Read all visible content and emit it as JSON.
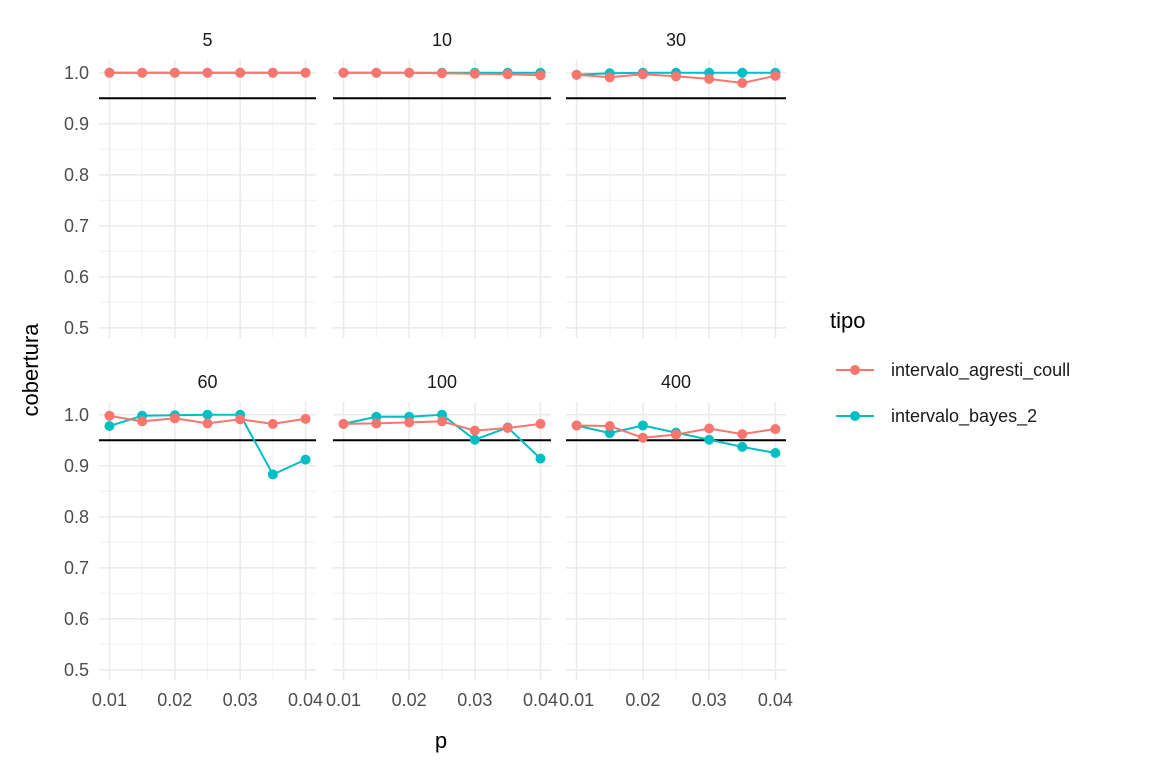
{
  "chart_data": {
    "type": "line",
    "xlabel": "p",
    "ylabel": "cobertura",
    "x": [
      0.01,
      0.015,
      0.02,
      0.025,
      0.03,
      0.035,
      0.04
    ],
    "x_ticks": [
      0.01,
      0.02,
      0.03,
      0.04
    ],
    "x_tick_labels": [
      "0.01",
      "0.02",
      "0.03",
      "0.04"
    ],
    "xlim": [
      0.0084,
      0.0416
    ],
    "ylim": [
      0.48,
      1.025
    ],
    "y_ticks": [
      0.5,
      0.6,
      0.7,
      0.8,
      0.9,
      1.0
    ],
    "y_tick_labels": [
      "0.5",
      "0.6",
      "0.7",
      "0.8",
      "0.9",
      "1.0"
    ],
    "reference_line": 0.95,
    "grid": true,
    "legend": {
      "title": "tipo",
      "placement": "right",
      "entries": [
        "intervalo_agresti_coull",
        "intervalo_bayes_2"
      ]
    },
    "colors": {
      "intervalo_agresti_coull": "#F8766D",
      "intervalo_bayes_2": "#00BFC4"
    },
    "facets": [
      {
        "label": "5",
        "series": [
          {
            "name": "intervalo_agresti_coull",
            "values": [
              1.0,
              1.0,
              1.0,
              1.0,
              1.0,
              1.0,
              1.0
            ]
          },
          {
            "name": "intervalo_bayes_2",
            "values": [
              1.0,
              1.0,
              1.0,
              1.0,
              1.0,
              1.0,
              1.0
            ]
          }
        ]
      },
      {
        "label": "10",
        "series": [
          {
            "name": "intervalo_agresti_coull",
            "values": [
              1.0,
              1.0,
              1.0,
              0.999,
              0.998,
              0.997,
              0.995
            ]
          },
          {
            "name": "intervalo_bayes_2",
            "values": [
              1.0,
              1.0,
              1.0,
              1.0,
              1.0,
              1.0,
              1.0
            ]
          }
        ]
      },
      {
        "label": "30",
        "series": [
          {
            "name": "intervalo_agresti_coull",
            "values": [
              0.996,
              0.991,
              0.997,
              0.993,
              0.988,
              0.98,
              0.994
            ]
          },
          {
            "name": "intervalo_bayes_2",
            "values": [
              0.996,
              0.999,
              1.0,
              1.0,
              1.0,
              1.0,
              1.0
            ]
          }
        ]
      },
      {
        "label": "60",
        "series": [
          {
            "name": "intervalo_agresti_coull",
            "values": [
              0.998,
              0.987,
              0.993,
              0.983,
              0.991,
              0.982,
              0.992
            ]
          },
          {
            "name": "intervalo_bayes_2",
            "values": [
              0.978,
              0.998,
              0.999,
              1.0,
              1.0,
              0.883,
              0.912
            ]
          }
        ]
      },
      {
        "label": "100",
        "series": [
          {
            "name": "intervalo_agresti_coull",
            "values": [
              0.982,
              0.983,
              0.985,
              0.987,
              0.969,
              0.974,
              0.982
            ]
          },
          {
            "name": "intervalo_bayes_2",
            "values": [
              0.982,
              0.996,
              0.996,
              1.0,
              0.951,
              0.975,
              0.914
            ]
          }
        ]
      },
      {
        "label": "400",
        "series": [
          {
            "name": "intervalo_agresti_coull",
            "values": [
              0.979,
              0.978,
              0.955,
              0.961,
              0.973,
              0.962,
              0.972
            ]
          },
          {
            "name": "intervalo_bayes_2",
            "values": [
              0.979,
              0.964,
              0.979,
              0.965,
              0.951,
              0.937,
              0.925
            ]
          }
        ]
      }
    ]
  }
}
